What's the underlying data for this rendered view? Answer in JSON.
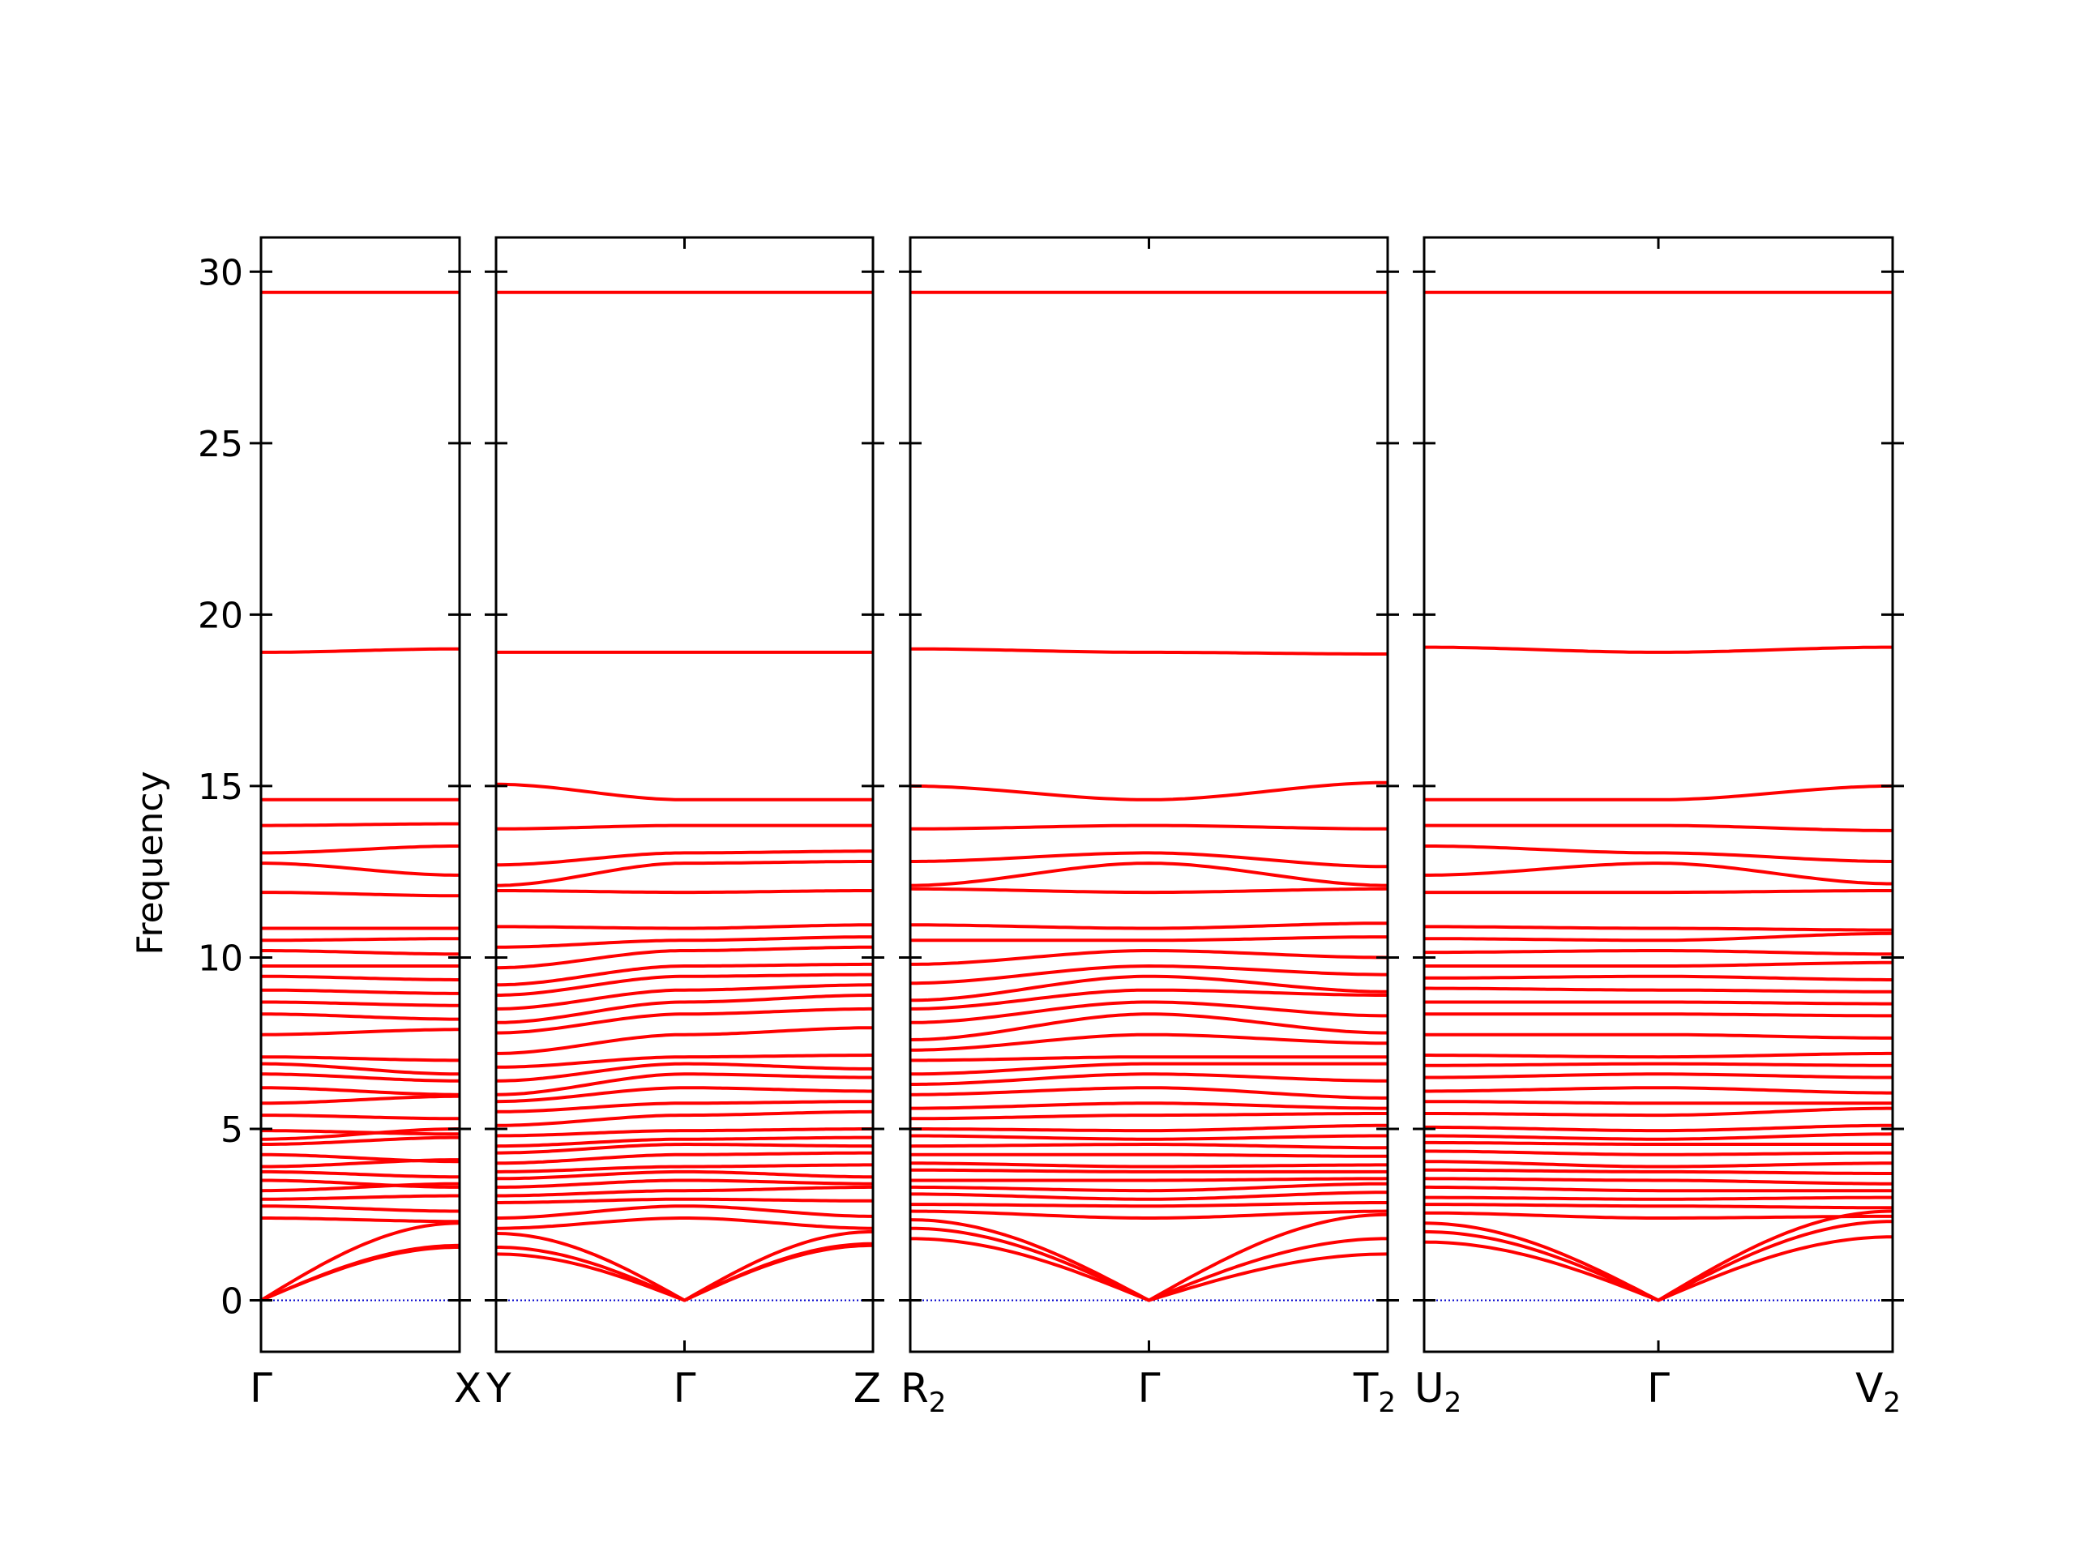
{
  "chart_data": {
    "type": "line",
    "ylabel": "Frequency",
    "ylim": [
      -1.5,
      31
    ],
    "yticks": [
      0,
      5,
      10,
      15,
      20,
      25,
      30
    ],
    "colors": {
      "bands": "#ff0000",
      "zero_line": "#0000cc",
      "axes": "#000000"
    },
    "panels": [
      {
        "labels": [
          {
            "text": "Γ",
            "sub": ""
          },
          {
            "text": "X",
            "sub": ""
          }
        ],
        "acoustic": [
          [
            0,
            1.6
          ],
          [
            0,
            1.55
          ],
          [
            0,
            2.25
          ]
        ],
        "optical": [
          [
            2.4,
            2.3
          ],
          [
            2.75,
            2.6
          ],
          [
            2.95,
            3.05
          ],
          [
            3.2,
            3.4
          ],
          [
            3.5,
            3.3
          ],
          [
            3.75,
            3.6
          ],
          [
            3.9,
            4.1
          ],
          [
            4.25,
            4.05
          ],
          [
            4.55,
            4.75
          ],
          [
            4.7,
            5.0
          ],
          [
            4.95,
            4.85
          ],
          [
            5.4,
            5.3
          ],
          [
            5.75,
            5.95
          ],
          [
            6.2,
            6.0
          ],
          [
            6.6,
            6.4
          ],
          [
            6.9,
            6.6
          ],
          [
            7.1,
            7.0
          ],
          [
            7.75,
            7.9
          ],
          [
            8.35,
            8.2
          ],
          [
            8.7,
            8.6
          ],
          [
            9.05,
            8.95
          ],
          [
            9.45,
            9.35
          ],
          [
            9.75,
            9.75
          ],
          [
            10.2,
            10.1
          ],
          [
            10.5,
            10.55
          ],
          [
            10.85,
            10.85
          ],
          [
            11.9,
            11.8
          ],
          [
            12.75,
            12.4
          ],
          [
            13.05,
            13.25
          ],
          [
            13.85,
            13.9
          ],
          [
            14.6,
            14.6
          ],
          [
            18.9,
            19.0
          ],
          [
            29.4,
            29.4
          ]
        ]
      },
      {
        "labels": [
          {
            "text": "Y",
            "sub": ""
          },
          {
            "text": "Γ",
            "sub": ""
          },
          {
            "text": "Z",
            "sub": ""
          }
        ],
        "acoustic": [
          [
            1.35,
            0,
            1.65
          ],
          [
            1.55,
            0,
            1.6
          ],
          [
            1.95,
            0,
            2.0
          ]
        ],
        "optical": [
          [
            2.1,
            2.4,
            2.1
          ],
          [
            2.4,
            2.75,
            2.45
          ],
          [
            2.85,
            2.95,
            2.9
          ],
          [
            3.05,
            3.2,
            3.3
          ],
          [
            3.3,
            3.5,
            3.4
          ],
          [
            3.55,
            3.75,
            3.6
          ],
          [
            3.75,
            3.9,
            3.95
          ],
          [
            4.0,
            4.25,
            4.3
          ],
          [
            4.3,
            4.55,
            4.5
          ],
          [
            4.5,
            4.7,
            4.75
          ],
          [
            4.8,
            4.95,
            5.0
          ],
          [
            5.1,
            5.4,
            5.5
          ],
          [
            5.5,
            5.75,
            5.8
          ],
          [
            5.8,
            6.2,
            6.1
          ],
          [
            6.0,
            6.6,
            6.5
          ],
          [
            6.4,
            6.9,
            6.75
          ],
          [
            6.8,
            7.1,
            7.15
          ],
          [
            7.2,
            7.75,
            7.95
          ],
          [
            7.8,
            8.35,
            8.5
          ],
          [
            8.1,
            8.7,
            8.9
          ],
          [
            8.5,
            9.05,
            9.2
          ],
          [
            8.9,
            9.45,
            9.5
          ],
          [
            9.2,
            9.75,
            9.8
          ],
          [
            9.7,
            10.2,
            10.3
          ],
          [
            10.3,
            10.5,
            10.6
          ],
          [
            10.9,
            10.85,
            10.95
          ],
          [
            11.95,
            11.9,
            11.95
          ],
          [
            12.1,
            12.75,
            12.8
          ],
          [
            12.7,
            13.05,
            13.1
          ],
          [
            13.75,
            13.85,
            13.85
          ],
          [
            15.05,
            14.6,
            14.6
          ],
          [
            18.9,
            18.9,
            18.9
          ],
          [
            29.4,
            29.4,
            29.4
          ]
        ]
      },
      {
        "labels": [
          {
            "text": "R",
            "sub": "2"
          },
          {
            "text": "Γ",
            "sub": ""
          },
          {
            "text": "T",
            "sub": "2"
          }
        ],
        "acoustic": [
          [
            1.8,
            0,
            1.35
          ],
          [
            2.1,
            0,
            1.8
          ],
          [
            2.35,
            0,
            2.5
          ]
        ],
        "optical": [
          [
            2.6,
            2.4,
            2.6
          ],
          [
            2.8,
            2.75,
            2.85
          ],
          [
            3.1,
            2.95,
            3.15
          ],
          [
            3.3,
            3.2,
            3.4
          ],
          [
            3.5,
            3.5,
            3.55
          ],
          [
            3.8,
            3.75,
            3.75
          ],
          [
            4.0,
            3.9,
            3.95
          ],
          [
            4.25,
            4.25,
            4.2
          ],
          [
            4.5,
            4.55,
            4.45
          ],
          [
            4.8,
            4.7,
            4.8
          ],
          [
            5.0,
            4.95,
            5.1
          ],
          [
            5.3,
            5.4,
            5.45
          ],
          [
            5.6,
            5.75,
            5.6
          ],
          [
            6.0,
            6.2,
            5.9
          ],
          [
            6.3,
            6.6,
            6.4
          ],
          [
            6.6,
            6.9,
            6.9
          ],
          [
            7.0,
            7.1,
            7.1
          ],
          [
            7.3,
            7.75,
            7.5
          ],
          [
            7.6,
            8.35,
            7.8
          ],
          [
            8.1,
            8.7,
            8.3
          ],
          [
            8.5,
            9.05,
            8.9
          ],
          [
            8.75,
            9.45,
            9.0
          ],
          [
            9.25,
            9.75,
            9.5
          ],
          [
            9.8,
            10.2,
            10.0
          ],
          [
            10.5,
            10.5,
            10.6
          ],
          [
            10.95,
            10.85,
            11.0
          ],
          [
            12.0,
            11.9,
            12.0
          ],
          [
            12.1,
            12.75,
            12.1
          ],
          [
            12.8,
            13.05,
            12.65
          ],
          [
            13.75,
            13.85,
            13.75
          ],
          [
            15.0,
            14.6,
            15.1
          ],
          [
            19.0,
            18.9,
            18.85
          ],
          [
            29.4,
            29.4,
            29.4
          ]
        ]
      },
      {
        "labels": [
          {
            "text": "U",
            "sub": "2"
          },
          {
            "text": "Γ",
            "sub": ""
          },
          {
            "text": "V",
            "sub": "2"
          }
        ],
        "acoustic": [
          [
            1.7,
            0,
            1.85
          ],
          [
            2.0,
            0,
            2.3
          ],
          [
            2.25,
            0,
            2.6
          ]
        ],
        "optical": [
          [
            2.55,
            2.4,
            2.45
          ],
          [
            2.8,
            2.75,
            2.7
          ],
          [
            3.0,
            2.95,
            3.0
          ],
          [
            3.3,
            3.2,
            3.2
          ],
          [
            3.55,
            3.5,
            3.4
          ],
          [
            3.8,
            3.75,
            3.7
          ],
          [
            4.05,
            3.9,
            4.0
          ],
          [
            4.35,
            4.25,
            4.3
          ],
          [
            4.6,
            4.55,
            4.55
          ],
          [
            4.8,
            4.7,
            4.85
          ],
          [
            5.05,
            4.95,
            5.1
          ],
          [
            5.45,
            5.4,
            5.6
          ],
          [
            5.8,
            5.75,
            5.75
          ],
          [
            6.1,
            6.2,
            6.05
          ],
          [
            6.5,
            6.6,
            6.5
          ],
          [
            6.85,
            6.9,
            6.85
          ],
          [
            7.15,
            7.1,
            7.2
          ],
          [
            7.75,
            7.75,
            7.65
          ],
          [
            8.35,
            8.35,
            8.3
          ],
          [
            8.7,
            8.7,
            8.65
          ],
          [
            9.1,
            9.05,
            9.0
          ],
          [
            9.4,
            9.45,
            9.35
          ],
          [
            9.75,
            9.75,
            9.85
          ],
          [
            10.15,
            10.2,
            10.1
          ],
          [
            10.55,
            10.5,
            10.7
          ],
          [
            10.9,
            10.85,
            10.8
          ],
          [
            11.9,
            11.9,
            11.95
          ],
          [
            12.4,
            12.75,
            12.15
          ],
          [
            13.25,
            13.05,
            12.8
          ],
          [
            13.85,
            13.85,
            13.7
          ],
          [
            14.6,
            14.6,
            15.0
          ],
          [
            19.05,
            18.9,
            19.05
          ],
          [
            29.4,
            29.4,
            29.4
          ]
        ]
      }
    ]
  }
}
